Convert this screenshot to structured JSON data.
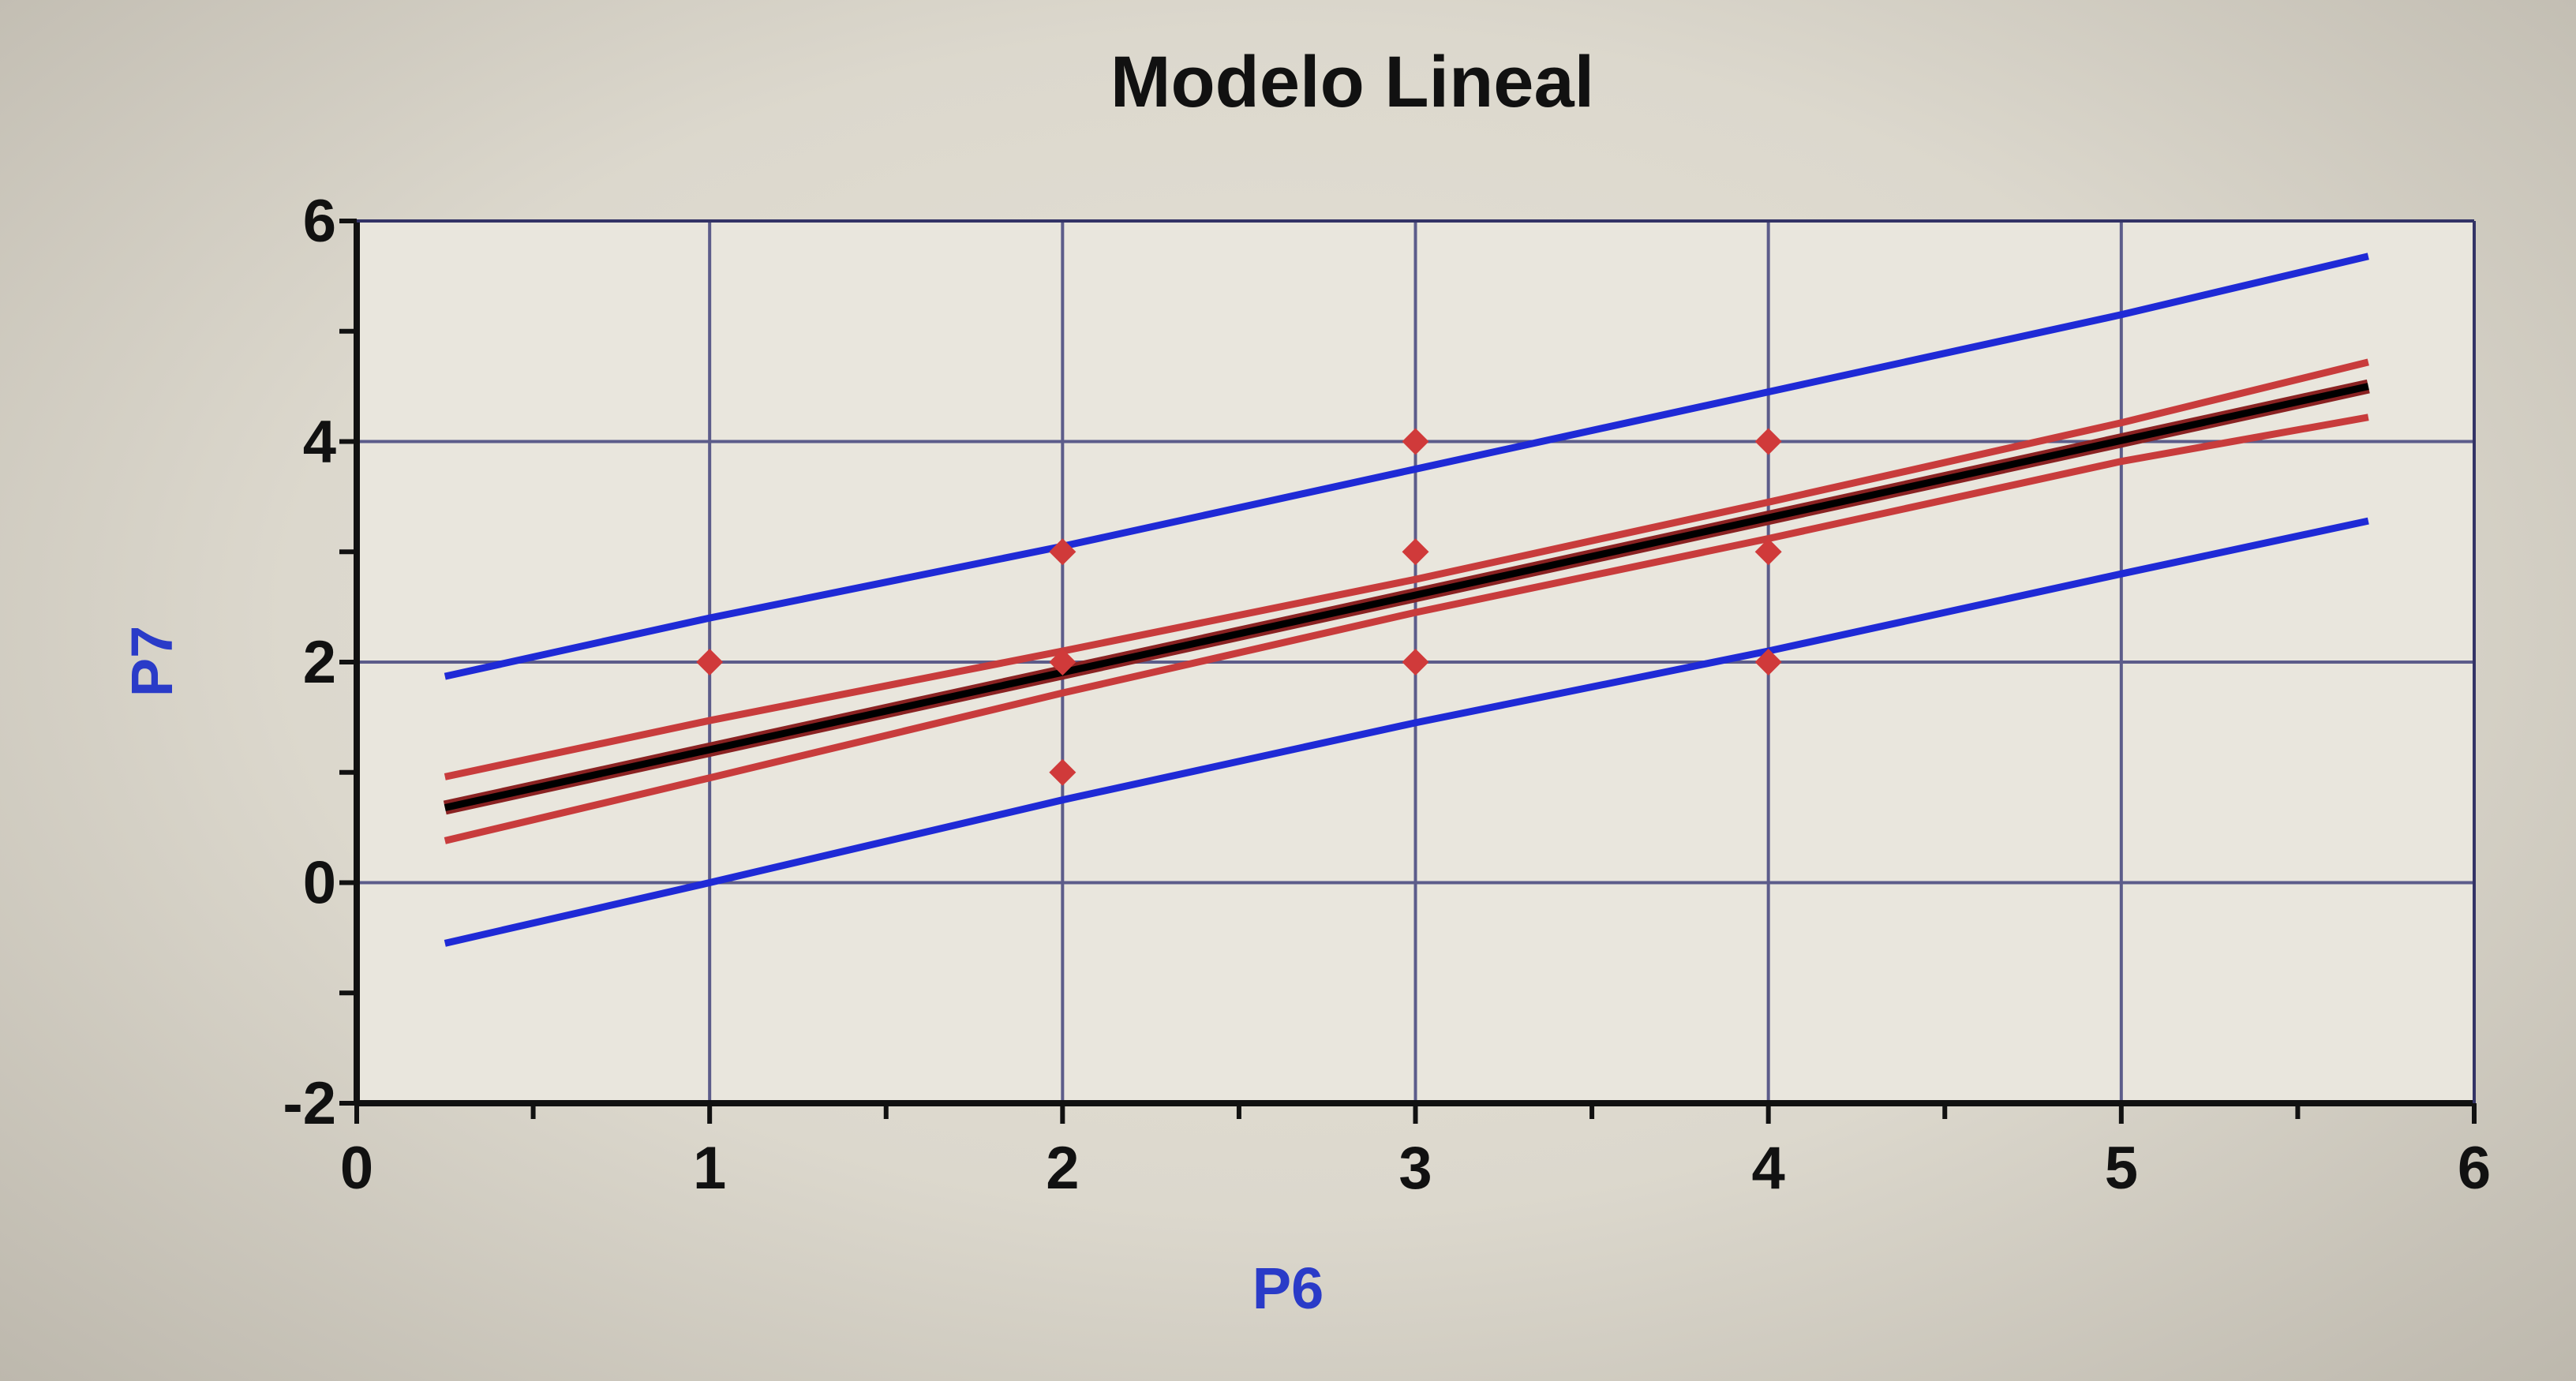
{
  "chart_data": {
    "type": "scatter",
    "title": "Modelo Lineal",
    "xlabel": "P6",
    "ylabel": "P7",
    "xlim": [
      0,
      6
    ],
    "ylim": [
      -2,
      6
    ],
    "x_ticks": [
      0,
      1,
      2,
      3,
      4,
      5,
      6
    ],
    "y_ticks": [
      -2,
      0,
      2,
      4,
      6
    ],
    "x_minor_step": 0.5,
    "y_minor_step": 1,
    "grid": true,
    "legend": "none",
    "colors": {
      "points": "#d03a3a",
      "fit": "#000000",
      "confidence": "#c83c3c",
      "prediction": "#1f2ad6",
      "grid": "#5c5c8a",
      "axes": "#111111",
      "axis_label": "#2a3bc8"
    },
    "points": [
      {
        "x": 1,
        "y": 2
      },
      {
        "x": 2,
        "y": 1
      },
      {
        "x": 2,
        "y": 2
      },
      {
        "x": 2,
        "y": 3
      },
      {
        "x": 3,
        "y": 2
      },
      {
        "x": 3,
        "y": 3
      },
      {
        "x": 3,
        "y": 4
      },
      {
        "x": 4,
        "y": 2
      },
      {
        "x": 4,
        "y": 3
      },
      {
        "x": 4,
        "y": 4
      }
    ],
    "fit_line": {
      "x": [
        0.25,
        5.7
      ],
      "y": [
        0.68,
        4.5
      ]
    },
    "confidence_upper": {
      "x": [
        0.25,
        1,
        2,
        3,
        4,
        5,
        5.7
      ],
      "y": [
        0.96,
        1.47,
        2.1,
        2.75,
        3.45,
        4.17,
        4.72
      ]
    },
    "confidence_lower": {
      "x": [
        0.25,
        1,
        2,
        3,
        4,
        5,
        5.7
      ],
      "y": [
        0.38,
        0.95,
        1.72,
        2.45,
        3.12,
        3.82,
        4.22
      ]
    },
    "prediction_upper": {
      "x": [
        0.25,
        1,
        2,
        3,
        4,
        5,
        5.7
      ],
      "y": [
        1.87,
        2.4,
        3.05,
        3.75,
        4.45,
        5.15,
        5.68
      ]
    },
    "prediction_lower": {
      "x": [
        0.25,
        1,
        2,
        3,
        4,
        5,
        5.7
      ],
      "y": [
        -0.55,
        0.0,
        0.75,
        1.45,
        2.1,
        2.8,
        3.28
      ]
    }
  }
}
